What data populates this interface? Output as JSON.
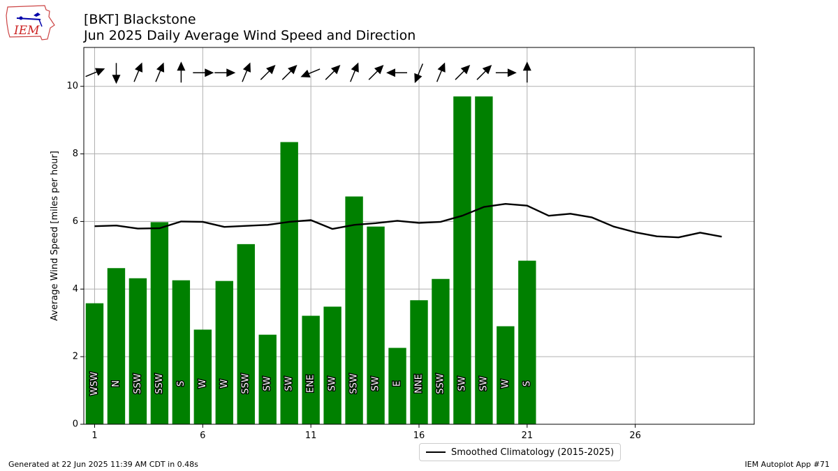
{
  "header": {
    "title_line1": "[BKT] Blackstone",
    "title_line2": "Jun 2025 Daily Average Wind Speed and Direction",
    "logo_text": "IEM"
  },
  "footer": {
    "generated": "Generated at 22 Jun 2025 11:39 AM CDT in 0.48s",
    "app": "IEM Autoplot App #71"
  },
  "legend": {
    "climatology_label": "Smoothed Climatology (2015-2025)"
  },
  "colors": {
    "bar": "#008000",
    "line": "#000000",
    "grid": "#b0b0b0"
  },
  "chart_data": {
    "type": "bar",
    "ylabel": "Average Wind Speed [miles per hour]",
    "xlabel": "",
    "xlim": [
      0.5,
      31.5
    ],
    "ylim": [
      0,
      11.15
    ],
    "xticks": [
      1,
      6,
      11,
      16,
      21,
      26
    ],
    "yticks": [
      0,
      2,
      4,
      6,
      8,
      10
    ],
    "grid": true,
    "legend_position": "bottom-center",
    "series": [
      {
        "type": "bar",
        "days": [
          1,
          2,
          3,
          4,
          5,
          6,
          7,
          8,
          9,
          10,
          11,
          12,
          13,
          14,
          15,
          16,
          17,
          18,
          19,
          20,
          21
        ],
        "values": [
          3.58,
          4.62,
          4.32,
          5.98,
          4.26,
          2.8,
          4.24,
          5.33,
          2.65,
          8.35,
          3.21,
          3.48,
          6.74,
          5.85,
          2.26,
          3.67,
          4.3,
          9.7,
          9.7,
          2.9,
          4.84
        ],
        "directions": [
          "WSW",
          "N",
          "SSW",
          "SSW",
          "S",
          "W",
          "W",
          "SSW",
          "SW",
          "SW",
          "ENE",
          "SW",
          "SSW",
          "SW",
          "E",
          "NNE",
          "SSW",
          "SW",
          "SW",
          "W",
          "S"
        ]
      },
      {
        "type": "line",
        "name": "Smoothed Climatology (2015-2025)",
        "days": [
          1,
          2,
          3,
          4,
          5,
          6,
          7,
          8,
          9,
          10,
          11,
          12,
          13,
          14,
          15,
          16,
          17,
          18,
          19,
          20,
          21,
          22,
          23,
          24,
          25,
          26,
          27,
          28,
          29,
          30
        ],
        "values": [
          5.86,
          5.88,
          5.79,
          5.8,
          6.0,
          5.99,
          5.84,
          5.87,
          5.9,
          5.99,
          6.04,
          5.78,
          5.9,
          5.95,
          6.02,
          5.96,
          5.99,
          6.17,
          6.43,
          6.52,
          6.47,
          6.17,
          6.23,
          6.12,
          5.85,
          5.68,
          5.56,
          5.53,
          5.67,
          5.55
        ]
      }
    ]
  }
}
